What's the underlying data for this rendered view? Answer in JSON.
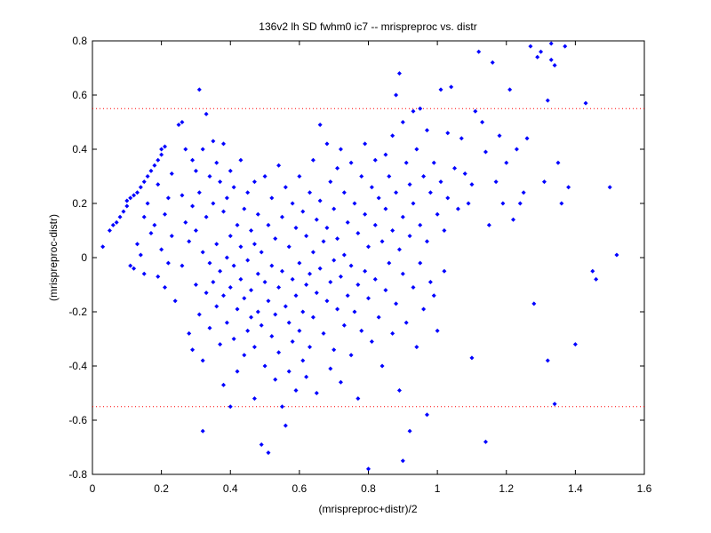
{
  "chart_data": {
    "type": "scatter",
    "title": "136v2 lh SD fwhm0 ic7 -- mrispreproc vs. distr",
    "xlabel": "(mrispreproc+distr)/2",
    "ylabel": "(mrispreproc-distr)",
    "xlim": [
      0,
      1.6
    ],
    "ylim": [
      -0.8,
      0.8
    ],
    "xticks": [
      "0",
      "0.2",
      "0.4",
      "0.6",
      "0.8",
      "1",
      "1.2",
      "1.4",
      "1.6"
    ],
    "yticks": [
      "0.8",
      "0.6",
      "0.4",
      "0.2",
      "0",
      "-0.2",
      "-0.4",
      "-0.6",
      "-0.8"
    ],
    "grid": false,
    "marker_color": "#0000ff",
    "reference_lines": [
      {
        "y": 0.55,
        "color": "#ff0000",
        "style": "dotted"
      },
      {
        "y": -0.55,
        "color": "#ff0000",
        "style": "dotted"
      }
    ],
    "points": [
      [
        0.03,
        0.04
      ],
      [
        0.05,
        0.1
      ],
      [
        0.06,
        0.12
      ],
      [
        0.07,
        0.13
      ],
      [
        0.08,
        0.15
      ],
      [
        0.09,
        0.17
      ],
      [
        0.1,
        0.19
      ],
      [
        0.1,
        0.21
      ],
      [
        0.11,
        0.22
      ],
      [
        0.12,
        0.23
      ],
      [
        0.13,
        0.24
      ],
      [
        0.14,
        0.26
      ],
      [
        0.15,
        0.28
      ],
      [
        0.16,
        0.3
      ],
      [
        0.17,
        0.32
      ],
      [
        0.18,
        0.34
      ],
      [
        0.19,
        0.36
      ],
      [
        0.2,
        0.38
      ],
      [
        0.2,
        0.4
      ],
      [
        0.21,
        0.41
      ],
      [
        0.11,
        -0.03
      ],
      [
        0.12,
        -0.04
      ],
      [
        0.13,
        0.05
      ],
      [
        0.14,
        0.01
      ],
      [
        0.15,
        -0.06
      ],
      [
        0.15,
        0.15
      ],
      [
        0.16,
        0.2
      ],
      [
        0.17,
        0.09
      ],
      [
        0.18,
        0.12
      ],
      [
        0.19,
        0.27
      ],
      [
        0.19,
        -0.07
      ],
      [
        0.2,
        0.03
      ],
      [
        0.21,
        0.16
      ],
      [
        0.21,
        -0.11
      ],
      [
        0.22,
        0.22
      ],
      [
        0.22,
        -0.02
      ],
      [
        0.23,
        0.31
      ],
      [
        0.23,
        0.08
      ],
      [
        0.24,
        -0.16
      ],
      [
        0.25,
        0.49
      ],
      [
        0.26,
        0.5
      ],
      [
        0.26,
        0.23
      ],
      [
        0.26,
        -0.03
      ],
      [
        0.27,
        0.4
      ],
      [
        0.27,
        0.13
      ],
      [
        0.28,
        0.06
      ],
      [
        0.28,
        -0.28
      ],
      [
        0.29,
        0.36
      ],
      [
        0.29,
        0.19
      ],
      [
        0.29,
        -0.34
      ],
      [
        0.3,
        0.32
      ],
      [
        0.3,
        0.1
      ],
      [
        0.3,
        -0.1
      ],
      [
        0.31,
        0.62
      ],
      [
        0.31,
        0.24
      ],
      [
        0.31,
        -0.21
      ],
      [
        0.32,
        0.4
      ],
      [
        0.32,
        0.02
      ],
      [
        0.32,
        -0.38
      ],
      [
        0.32,
        -0.64
      ],
      [
        0.33,
        0.53
      ],
      [
        0.33,
        0.15
      ],
      [
        0.33,
        -0.13
      ],
      [
        0.34,
        0.3
      ],
      [
        0.34,
        -0.02
      ],
      [
        0.34,
        -0.26
      ],
      [
        0.35,
        0.43
      ],
      [
        0.35,
        0.2
      ],
      [
        0.35,
        -0.09
      ],
      [
        0.36,
        0.35
      ],
      [
        0.36,
        0.05
      ],
      [
        0.36,
        -0.18
      ],
      [
        0.37,
        0.28
      ],
      [
        0.37,
        -0.05
      ],
      [
        0.37,
        -0.32
      ],
      [
        0.38,
        0.42
      ],
      [
        0.38,
        0.17
      ],
      [
        0.38,
        -0.14
      ],
      [
        0.38,
        -0.47
      ],
      [
        0.39,
        0.22
      ],
      [
        0.39,
        0.0
      ],
      [
        0.39,
        -0.24
      ],
      [
        0.4,
        0.32
      ],
      [
        0.4,
        0.08
      ],
      [
        0.4,
        -0.11
      ],
      [
        0.4,
        -0.55
      ],
      [
        0.41,
        0.26
      ],
      [
        0.41,
        -0.03
      ],
      [
        0.41,
        -0.3
      ],
      [
        0.42,
        0.12
      ],
      [
        0.42,
        -0.19
      ],
      [
        0.42,
        -0.42
      ],
      [
        0.43,
        0.36
      ],
      [
        0.43,
        0.04
      ],
      [
        0.43,
        -0.08
      ],
      [
        0.44,
        0.18
      ],
      [
        0.44,
        -0.15
      ],
      [
        0.44,
        -0.36
      ],
      [
        0.45,
        0.24
      ],
      [
        0.45,
        -0.01
      ],
      [
        0.45,
        -0.27
      ],
      [
        0.46,
        0.1
      ],
      [
        0.46,
        -0.12
      ],
      [
        0.46,
        -0.22
      ],
      [
        0.47,
        0.28
      ],
      [
        0.47,
        0.05
      ],
      [
        0.47,
        -0.33
      ],
      [
        0.47,
        -0.52
      ],
      [
        0.48,
        0.16
      ],
      [
        0.48,
        -0.06
      ],
      [
        0.48,
        -0.2
      ],
      [
        0.49,
        0.02
      ],
      [
        0.49,
        -0.25
      ],
      [
        0.49,
        -0.69
      ],
      [
        0.5,
        0.3
      ],
      [
        0.5,
        -0.09
      ],
      [
        0.5,
        -0.4
      ],
      [
        0.51,
        0.12
      ],
      [
        0.51,
        -0.16
      ],
      [
        0.51,
        -0.72
      ],
      [
        0.52,
        0.22
      ],
      [
        0.52,
        -0.03
      ],
      [
        0.52,
        -0.29
      ],
      [
        0.53,
        0.07
      ],
      [
        0.53,
        -0.21
      ],
      [
        0.53,
        -0.45
      ],
      [
        0.54,
        0.34
      ],
      [
        0.54,
        -0.11
      ],
      [
        0.54,
        -0.35
      ],
      [
        0.55,
        0.15
      ],
      [
        0.55,
        -0.05
      ],
      [
        0.55,
        -0.55
      ],
      [
        0.56,
        0.26
      ],
      [
        0.56,
        -0.18
      ],
      [
        0.56,
        -0.62
      ],
      [
        0.57,
        0.04
      ],
      [
        0.57,
        -0.24
      ],
      [
        0.57,
        -0.42
      ],
      [
        0.58,
        0.2
      ],
      [
        0.58,
        -0.08
      ],
      [
        0.58,
        -0.31
      ],
      [
        0.59,
        0.11
      ],
      [
        0.59,
        -0.14
      ],
      [
        0.59,
        -0.49
      ],
      [
        0.6,
        0.3
      ],
      [
        0.6,
        -0.02
      ],
      [
        0.6,
        -0.27
      ],
      [
        0.61,
        0.17
      ],
      [
        0.61,
        -0.2
      ],
      [
        0.61,
        -0.38
      ],
      [
        0.62,
        0.08
      ],
      [
        0.62,
        -0.1
      ],
      [
        0.62,
        -0.44
      ],
      [
        0.63,
        0.24
      ],
      [
        0.63,
        -0.06
      ],
      [
        0.63,
        -0.33
      ],
      [
        0.64,
        0.36
      ],
      [
        0.64,
        0.02
      ],
      [
        0.64,
        -0.22
      ],
      [
        0.65,
        0.14
      ],
      [
        0.65,
        -0.13
      ],
      [
        0.65,
        -0.5
      ],
      [
        0.66,
        0.49
      ],
      [
        0.66,
        0.21
      ],
      [
        0.66,
        -0.04
      ],
      [
        0.67,
        0.06
      ],
      [
        0.67,
        -0.28
      ],
      [
        0.68,
        0.42
      ],
      [
        0.68,
        0.11
      ],
      [
        0.68,
        -0.16
      ],
      [
        0.69,
        0.28
      ],
      [
        0.69,
        -0.09
      ],
      [
        0.69,
        -0.41
      ],
      [
        0.7,
        0.18
      ],
      [
        0.7,
        -0.01
      ],
      [
        0.7,
        -0.34
      ],
      [
        0.71,
        0.33
      ],
      [
        0.71,
        0.07
      ],
      [
        0.71,
        -0.19
      ],
      [
        0.72,
        0.4
      ],
      [
        0.72,
        -0.07
      ],
      [
        0.72,
        -0.46
      ],
      [
        0.73,
        0.24
      ],
      [
        0.73,
        0.01
      ],
      [
        0.73,
        -0.25
      ],
      [
        0.74,
        0.13
      ],
      [
        0.74,
        -0.14
      ],
      [
        0.75,
        0.35
      ],
      [
        0.75,
        -0.03
      ],
      [
        0.75,
        -0.36
      ],
      [
        0.76,
        0.2
      ],
      [
        0.76,
        -0.2
      ],
      [
        0.77,
        0.09
      ],
      [
        0.77,
        -0.1
      ],
      [
        0.77,
        -0.52
      ],
      [
        0.78,
        0.3
      ],
      [
        0.78,
        -0.27
      ],
      [
        0.79,
        0.42
      ],
      [
        0.79,
        0.16
      ],
      [
        0.79,
        -0.05
      ],
      [
        0.8,
        0.04
      ],
      [
        0.8,
        -0.15
      ],
      [
        0.8,
        -0.78
      ],
      [
        0.81,
        0.26
      ],
      [
        0.81,
        -0.31
      ],
      [
        0.82,
        0.36
      ],
      [
        0.82,
        0.12
      ],
      [
        0.82,
        -0.08
      ],
      [
        0.83,
        0.22
      ],
      [
        0.83,
        -0.22
      ],
      [
        0.84,
        0.06
      ],
      [
        0.84,
        -0.4
      ],
      [
        0.85,
        0.38
      ],
      [
        0.85,
        0.18
      ],
      [
        0.85,
        -0.12
      ],
      [
        0.86,
        0.3
      ],
      [
        0.86,
        -0.02
      ],
      [
        0.87,
        0.45
      ],
      [
        0.87,
        0.1
      ],
      [
        0.87,
        -0.28
      ],
      [
        0.88,
        0.6
      ],
      [
        0.88,
        0.24
      ],
      [
        0.88,
        -0.17
      ],
      [
        0.89,
        0.68
      ],
      [
        0.89,
        0.03
      ],
      [
        0.89,
        -0.49
      ],
      [
        0.9,
        0.5
      ],
      [
        0.9,
        0.15
      ],
      [
        0.9,
        -0.06
      ],
      [
        0.9,
        -0.75
      ],
      [
        0.91,
        0.35
      ],
      [
        0.91,
        -0.24
      ],
      [
        0.92,
        0.27
      ],
      [
        0.92,
        0.08
      ],
      [
        0.92,
        -0.64
      ],
      [
        0.93,
        0.54
      ],
      [
        0.93,
        0.2
      ],
      [
        0.93,
        -0.11
      ],
      [
        0.94,
        0.4
      ],
      [
        0.94,
        -0.33
      ],
      [
        0.95,
        0.55
      ],
      [
        0.95,
        0.12
      ],
      [
        0.95,
        -0.02
      ],
      [
        0.96,
        0.3
      ],
      [
        0.96,
        -0.19
      ],
      [
        0.97,
        0.47
      ],
      [
        0.97,
        0.06
      ],
      [
        0.97,
        -0.58
      ],
      [
        0.98,
        0.24
      ],
      [
        0.98,
        -0.09
      ],
      [
        0.99,
        0.35
      ],
      [
        0.99,
        -0.14
      ],
      [
        1.0,
        0.16
      ],
      [
        1.0,
        -0.27
      ],
      [
        1.01,
        0.62
      ],
      [
        1.01,
        0.28
      ],
      [
        1.02,
        0.1
      ],
      [
        1.02,
        -0.05
      ],
      [
        1.03,
        0.46
      ],
      [
        1.03,
        0.22
      ],
      [
        1.04,
        0.63
      ],
      [
        1.05,
        0.33
      ],
      [
        1.06,
        0.18
      ],
      [
        1.07,
        0.44
      ],
      [
        1.08,
        0.31
      ],
      [
        1.09,
        0.2
      ],
      [
        1.1,
        0.27
      ],
      [
        1.1,
        -0.37
      ],
      [
        1.11,
        0.54
      ],
      [
        1.12,
        0.76
      ],
      [
        1.13,
        0.5
      ],
      [
        1.14,
        0.39
      ],
      [
        1.14,
        -0.68
      ],
      [
        1.15,
        0.12
      ],
      [
        1.16,
        0.72
      ],
      [
        1.17,
        0.28
      ],
      [
        1.18,
        0.45
      ],
      [
        1.19,
        0.2
      ],
      [
        1.2,
        0.35
      ],
      [
        1.21,
        0.62
      ],
      [
        1.22,
        0.14
      ],
      [
        1.23,
        0.4
      ],
      [
        1.24,
        0.2
      ],
      [
        1.25,
        0.24
      ],
      [
        1.26,
        0.44
      ],
      [
        1.27,
        0.78
      ],
      [
        1.28,
        -0.17
      ],
      [
        1.29,
        0.74
      ],
      [
        1.3,
        0.76
      ],
      [
        1.31,
        0.28
      ],
      [
        1.32,
        0.58
      ],
      [
        1.32,
        -0.38
      ],
      [
        1.33,
        0.79
      ],
      [
        1.33,
        0.73
      ],
      [
        1.34,
        0.71
      ],
      [
        1.34,
        -0.54
      ],
      [
        1.35,
        0.35
      ],
      [
        1.36,
        0.2
      ],
      [
        1.37,
        0.78
      ],
      [
        1.38,
        0.26
      ],
      [
        1.4,
        -0.32
      ],
      [
        1.43,
        0.57
      ],
      [
        1.45,
        -0.05
      ],
      [
        1.46,
        -0.08
      ],
      [
        1.5,
        0.26
      ],
      [
        1.52,
        0.01
      ]
    ]
  }
}
